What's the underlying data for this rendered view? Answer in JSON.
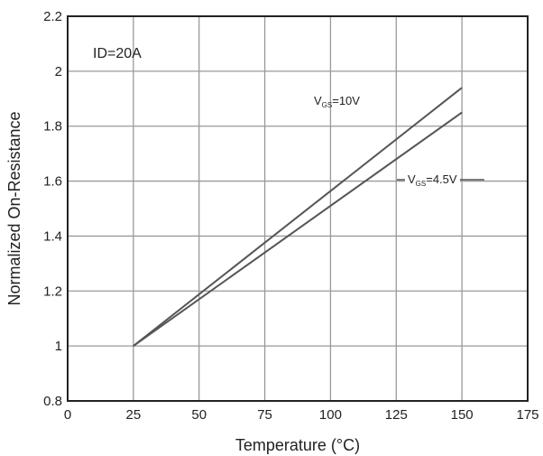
{
  "chart_data": {
    "type": "line",
    "title": "",
    "xlabel": "Temperature (°C)",
    "ylabel": "Normalized On-Resistance",
    "xlim": [
      0,
      175
    ],
    "ylim": [
      0.8,
      2.2
    ],
    "x_ticks": [
      "0",
      "25",
      "50",
      "75",
      "100",
      "125",
      "150",
      "175"
    ],
    "y_ticks": [
      "0.8",
      "1",
      "1.2",
      "1.4",
      "1.6",
      "1.8",
      "2",
      "2.2"
    ],
    "grid": true,
    "condition_label": "ID=20A",
    "series": [
      {
        "name": "VGS=10V",
        "label_main": "V",
        "label_sub": "GS",
        "label_rest": "=10V",
        "color": "#555555",
        "x": [
          25,
          150
        ],
        "y": [
          1.0,
          1.94
        ]
      },
      {
        "name": "VGS=4.5V",
        "label_main": "V",
        "label_sub": "GS",
        "label_rest": "=4.5V",
        "color": "#555555",
        "x": [
          25,
          150
        ],
        "y": [
          1.0,
          1.85
        ]
      }
    ]
  }
}
